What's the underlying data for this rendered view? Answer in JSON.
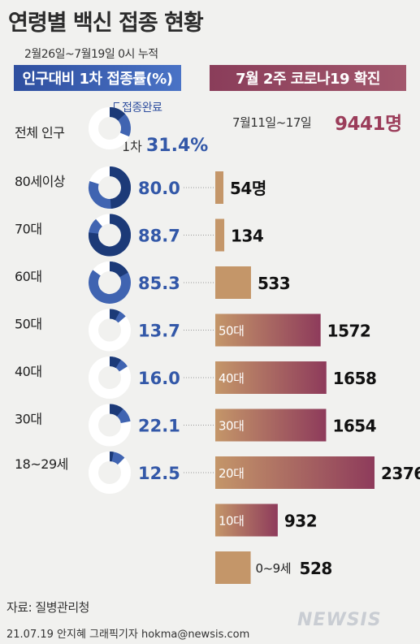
{
  "title": "연령별 백신 접종 현황",
  "period": "2월26일~7월19일 0시   누적",
  "header_left": "인구대비 1차 접종률(%)",
  "header_right": "7월 2주 코로나19 확진",
  "legend_label": "접종완료",
  "total": {
    "label": "전체 인구",
    "first_dose_label": "1차",
    "first_dose_rate": "31.4%",
    "week_range": "7월11일~17일",
    "week_cases": "9441명"
  },
  "colors": {
    "ring_bg": "#ffffff",
    "first_dose": "#4064b1",
    "completed": "#1c3a78",
    "bar_light": "#c49669",
    "bar_dark": "#8e3b5b"
  },
  "chart_data": {
    "type": "bar",
    "categories": [
      "80세이상",
      "70대",
      "60대",
      "50대",
      "40대",
      "30대",
      "18~29세"
    ],
    "series": [
      {
        "name": "인구대비 1차 접종률(%)",
        "values": [
          80.0,
          88.7,
          85.3,
          13.7,
          16.0,
          22.1,
          12.5
        ]
      }
    ],
    "rate_labels": [
      "80.0",
      "88.7",
      "85.3",
      "13.7",
      "16.0",
      "22.1",
      "12.5"
    ],
    "completed_rates": [
      49,
      77,
      17,
      8,
      9,
      11,
      3
    ],
    "total_first_dose_rate": 31.4,
    "total_completed_rate": 13,
    "cases": [
      {
        "label": "",
        "value": 54,
        "display": "54명"
      },
      {
        "label": "",
        "value": 134,
        "display": "134"
      },
      {
        "label": "",
        "value": 533,
        "display": "533"
      },
      {
        "label": "50대",
        "value": 1572,
        "display": "1572"
      },
      {
        "label": "40대",
        "value": 1658,
        "display": "1658"
      },
      {
        "label": "30대",
        "value": 1654,
        "display": "1654"
      },
      {
        "label": "20대",
        "value": 2376,
        "display": "2376"
      },
      {
        "label": "10대",
        "value": 932,
        "display": "932"
      },
      {
        "label": "0~9세",
        "value": 528,
        "display": "528"
      }
    ],
    "cases_total": 9441
  },
  "source": "자료: 질병관리청",
  "credit": "21.07.19 안지혜 그래픽기자  hokma@newsis.com",
  "watermark": "NEWSIS"
}
